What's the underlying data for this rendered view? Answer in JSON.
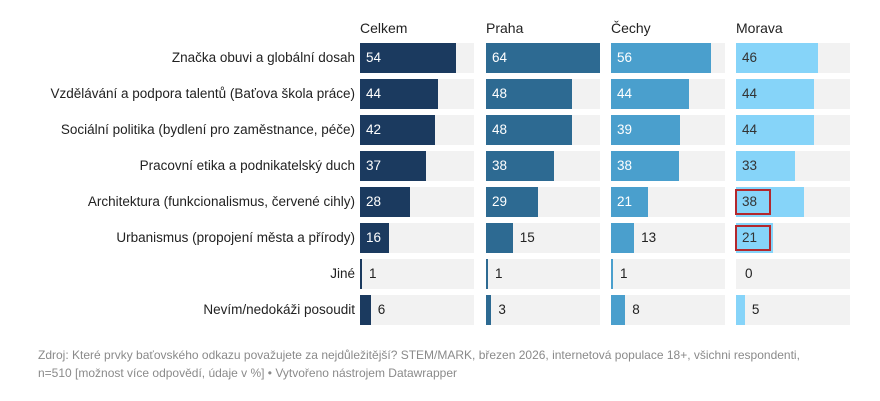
{
  "chart_data": {
    "type": "bar",
    "orientation": "horizontal",
    "layout": "small-multiples",
    "categories": [
      "Značka obuvi a globální dosah",
      "Vzdělávání a podpora talentů (Baťova škola práce)",
      "Sociální politika (bydlení pro zaměstnance, péče)",
      "Pracovní etika a podnikatelský duch",
      "Architektura (funkcionalismus, červené cihly)",
      "Urbanismus (propojení města a přírody)",
      "Jiné",
      "Nevím/nedokáži posoudit"
    ],
    "series": [
      {
        "name": "Celkem",
        "color": "#1b3a5f",
        "label_color": "#ffffff",
        "values": [
          54,
          44,
          42,
          37,
          28,
          16,
          1,
          6
        ]
      },
      {
        "name": "Praha",
        "color": "#2d6a92",
        "label_color": "#ffffff",
        "values": [
          64,
          48,
          48,
          38,
          29,
          15,
          1,
          3
        ]
      },
      {
        "name": "Čechy",
        "color": "#4a9fcd",
        "label_color": "#ffffff",
        "values": [
          56,
          44,
          39,
          38,
          21,
          13,
          1,
          8
        ]
      },
      {
        "name": "Morava",
        "color": "#86d4f9",
        "label_color": "#333333",
        "values": [
          46,
          44,
          44,
          33,
          38,
          21,
          0,
          5
        ]
      }
    ],
    "highlighted": [
      {
        "series": "Morava",
        "category": "Architektura (funkcionalismus, červené cihly)",
        "color": "#b3282d"
      },
      {
        "series": "Morava",
        "category": "Urbanismus (propojení města a přírody)",
        "color": "#b3282d"
      }
    ],
    "xlim": [
      0,
      64
    ],
    "grid": false,
    "legend": "none",
    "background_bar_color": "#f2f2f2"
  },
  "footer": {
    "line1": "Zdroj: Které prvky baťovského odkazu považujete za nejdůležitější? STEM/MARK, březen 2026, internetová populace 18+, všichni respondenti,",
    "line2": "n=510 [možnost více odpovědí, údaje v %] • Vytvořeno nástrojem Datawrapper"
  }
}
